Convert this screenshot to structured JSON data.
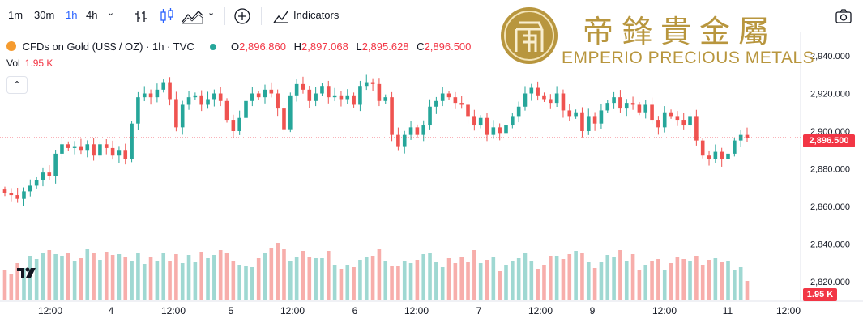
{
  "toolbar": {
    "intervals": [
      "1m",
      "30m",
      "1h",
      "4h"
    ],
    "active_interval": "1h",
    "indicators_label": "Indicators"
  },
  "legend": {
    "symbol": "CFDs on Gold (US$ / OZ) · 1h · TVC",
    "o_label": "O",
    "o_value": "2,896.860",
    "h_label": "H",
    "h_value": "2,897.068",
    "l_label": "L",
    "l_value": "2,895.628",
    "c_label": "C",
    "c_value": "2,896.500",
    "vol_label": "Vol",
    "vol_value": "1.95 K"
  },
  "logo": {
    "chinese": "帝鋒貴金屬",
    "english": "EMPERIO PRECIOUS METALS"
  },
  "price_label": "2,896.500",
  "volume_label": "1.95 K",
  "colors": {
    "up": "#26a69a",
    "down": "#ef5350",
    "up_vol": "#9fd8d2",
    "down_vol": "#f7aeab",
    "gold": "#b8963e"
  },
  "chart_data": {
    "type": "candlestick",
    "y_axis_ticks": [
      "2,940.000",
      "2,920.000",
      "2,900.000",
      "2,880.000",
      "2,860.000",
      "2,840.000",
      "2,820.000"
    ],
    "ylim": [
      2813,
      2955
    ],
    "x_axis_ticks": [
      "12:00",
      "4",
      "12:00",
      "5",
      "12:00",
      "6",
      "12:00",
      "7",
      "12:00",
      "9",
      "12:00",
      "11",
      "12:00"
    ],
    "last_price": 2896.5,
    "last_volume": "1.95 K",
    "ohlc_close": [
      2867,
      2866,
      2864,
      2868,
      2871,
      2874,
      2878,
      2876,
      2888,
      2893,
      2891,
      2892,
      2890,
      2893,
      2887,
      2893,
      2891,
      2887,
      2890,
      2885,
      2904,
      2918,
      2920,
      2918,
      2922,
      2926,
      2917,
      2902,
      2914,
      2918,
      2919,
      2914,
      2917,
      2920,
      2916,
      2906,
      2900,
      2907,
      2916,
      2920,
      2918,
      2922,
      2920,
      2912,
      2901,
      2919,
      2925,
      2922,
      2916,
      2920,
      2924,
      2918,
      2919,
      2917,
      2919,
      2914,
      2924,
      2926,
      2925,
      2916,
      2918,
      2898,
      2892,
      2898,
      2902,
      2898,
      2903,
      2913,
      2916,
      2920,
      2918,
      2915,
      2914,
      2908,
      2903,
      2907,
      2898,
      2902,
      2899,
      2903,
      2908,
      2913,
      2920,
      2923,
      2919,
      2917,
      2915,
      2920,
      2911,
      2908,
      2910,
      2900,
      2908,
      2904,
      2911,
      2915,
      2918,
      2912,
      2915,
      2914,
      2910,
      2914,
      2906,
      2902,
      2910,
      2908,
      2906,
      2903,
      2908,
      2895,
      2887,
      2885,
      2889,
      2885,
      2888,
      2895,
      2898,
      2896.5
    ],
    "volume_values": [
      38,
      33,
      46,
      40,
      55,
      51,
      58,
      62,
      57,
      55,
      58,
      48,
      52,
      63,
      58,
      50,
      60,
      56,
      57,
      53,
      48,
      58,
      45,
      53,
      49,
      58,
      49,
      57,
      46,
      56,
      47,
      60,
      52,
      56,
      62,
      58,
      48,
      44,
      42,
      41,
      52,
      59,
      65,
      71,
      63,
      49,
      53,
      61,
      53,
      52,
      52,
      61,
      43,
      39,
      43,
      41,
      50,
      53,
      55,
      63,
      48,
      42,
      42,
      49,
      46,
      50,
      57,
      58,
      47,
      41,
      52,
      46,
      54,
      47,
      62,
      46,
      50,
      53,
      36,
      43,
      48,
      52,
      58,
      48,
      39,
      43,
      55,
      55,
      51,
      57,
      61,
      58,
      47,
      40,
      47,
      56,
      53,
      62,
      48,
      57,
      38,
      43,
      49,
      51,
      38,
      46,
      54,
      51,
      49,
      55,
      44,
      50,
      52,
      47,
      48,
      38,
      41,
      24
    ]
  }
}
